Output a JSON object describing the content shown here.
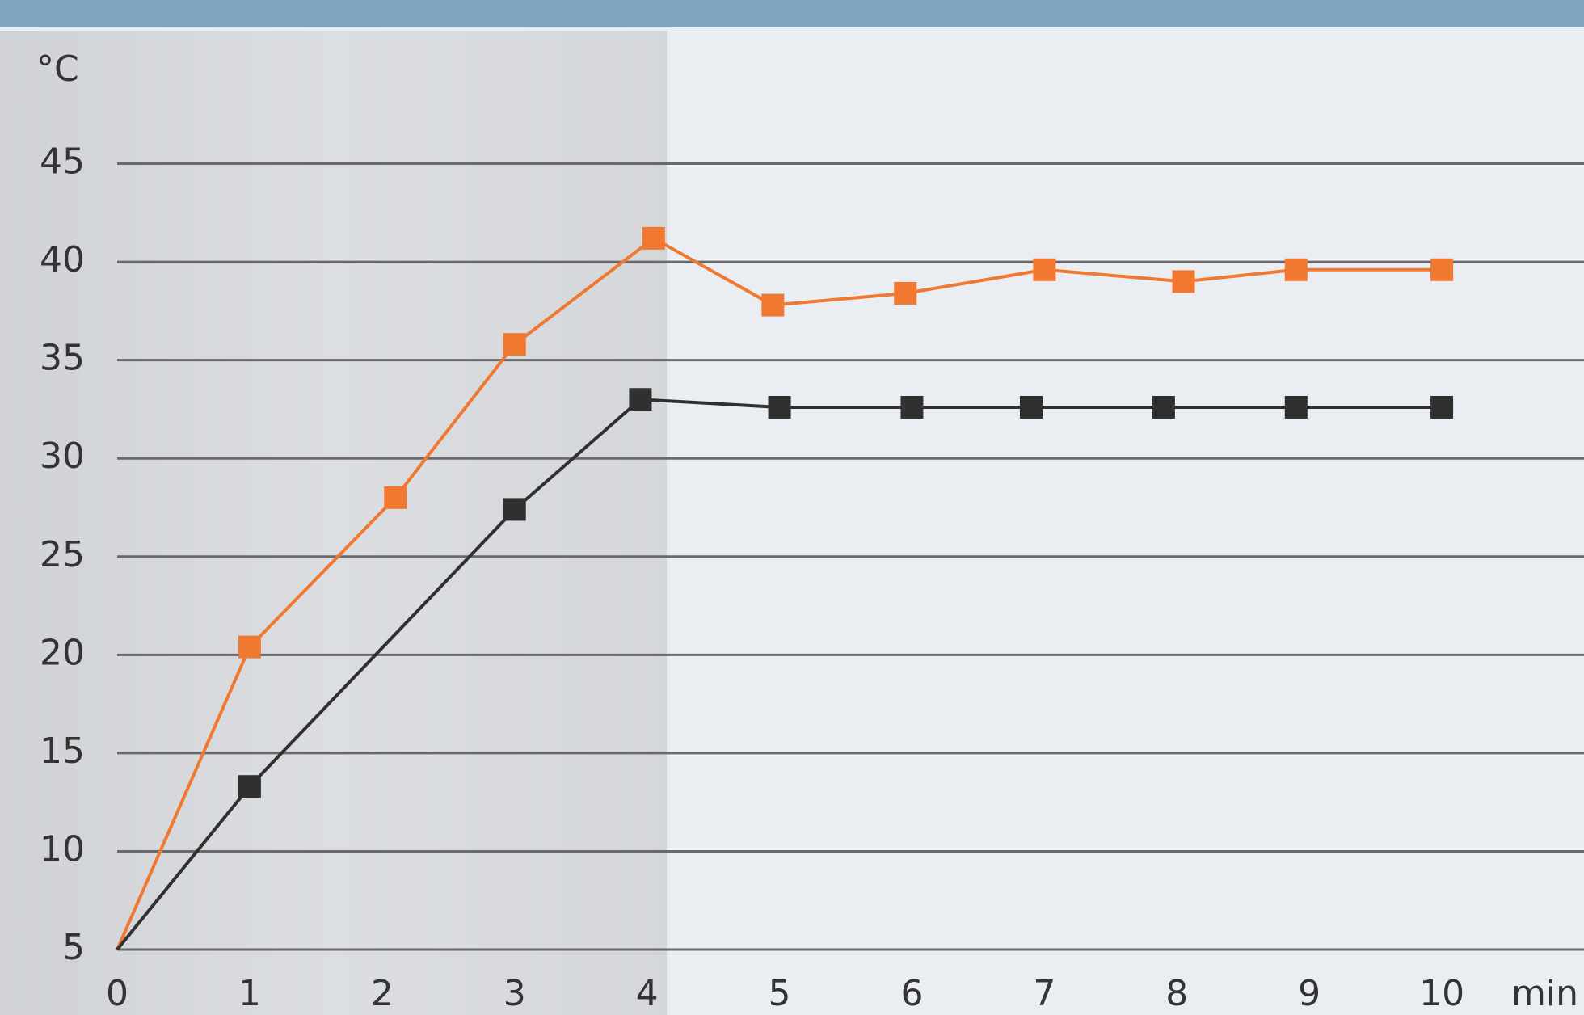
{
  "chart_data": {
    "type": "line",
    "y_label": "°C",
    "x_label": "min",
    "xlim": [
      0,
      11
    ],
    "ylim": [
      5,
      45
    ],
    "xticks": [
      0,
      1,
      2,
      3,
      4,
      5,
      6,
      7,
      8,
      9,
      10
    ],
    "yticks": [
      5,
      10,
      15,
      20,
      25,
      30,
      35,
      40,
      45
    ],
    "grid": true,
    "series": [
      {
        "color": "#f07830",
        "x": [
          0,
          1,
          2.1,
          3,
          4.05,
          4.95,
          5.95,
          7,
          8.05,
          8.9,
          10
        ],
        "values": [
          5,
          20.4,
          28,
          35.8,
          41.2,
          37.8,
          38.4,
          39.6,
          39,
          39.6,
          39.6
        ]
      },
      {
        "color": "#303030",
        "x": [
          0,
          1,
          3,
          3.95,
          5,
          6,
          6.9,
          7.9,
          8.9,
          10
        ],
        "values": [
          5,
          13.3,
          27.4,
          33,
          32.6,
          32.6,
          32.6,
          32.6,
          32.6,
          32.6
        ]
      }
    ]
  }
}
